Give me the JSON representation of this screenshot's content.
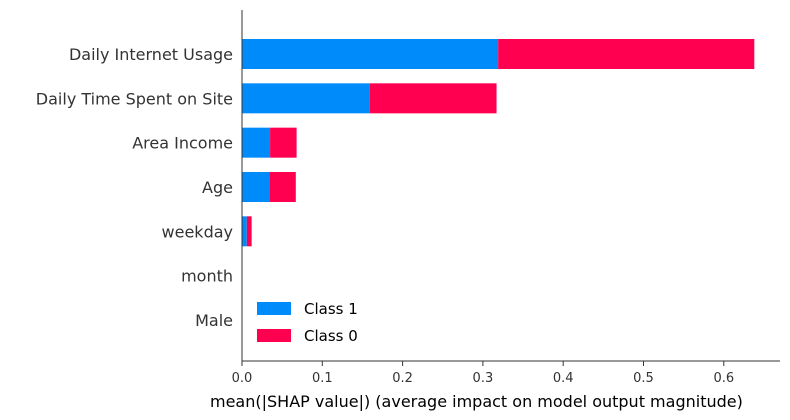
{
  "chart_data": {
    "type": "bar",
    "orientation": "horizontal",
    "stacked": true,
    "categories": [
      "Daily Internet Usage",
      "Daily Time Spent on Site",
      "Area Income",
      "Age",
      "weekday",
      "month",
      "Male"
    ],
    "series": [
      {
        "name": "Class 1",
        "color": "#008bfb",
        "values": [
          0.319,
          0.159,
          0.035,
          0.034,
          0.006,
          0.0,
          0.0
        ]
      },
      {
        "name": "Class 0",
        "color": "#ff0051",
        "values": [
          0.319,
          0.158,
          0.033,
          0.033,
          0.006,
          0.0,
          0.0
        ]
      }
    ],
    "xlabel": "mean(|SHAP value|) (average impact on model output magnitude)",
    "ylabel": "",
    "title": "",
    "xlim": [
      0.0,
      0.67
    ],
    "xticks": [
      0.0,
      0.1,
      0.2,
      0.3,
      0.4,
      0.5,
      0.6
    ],
    "xtick_labels": [
      "0.0",
      "0.1",
      "0.2",
      "0.3",
      "0.4",
      "0.5",
      "0.6"
    ],
    "grid": false,
    "legend_position": "lower-left"
  }
}
